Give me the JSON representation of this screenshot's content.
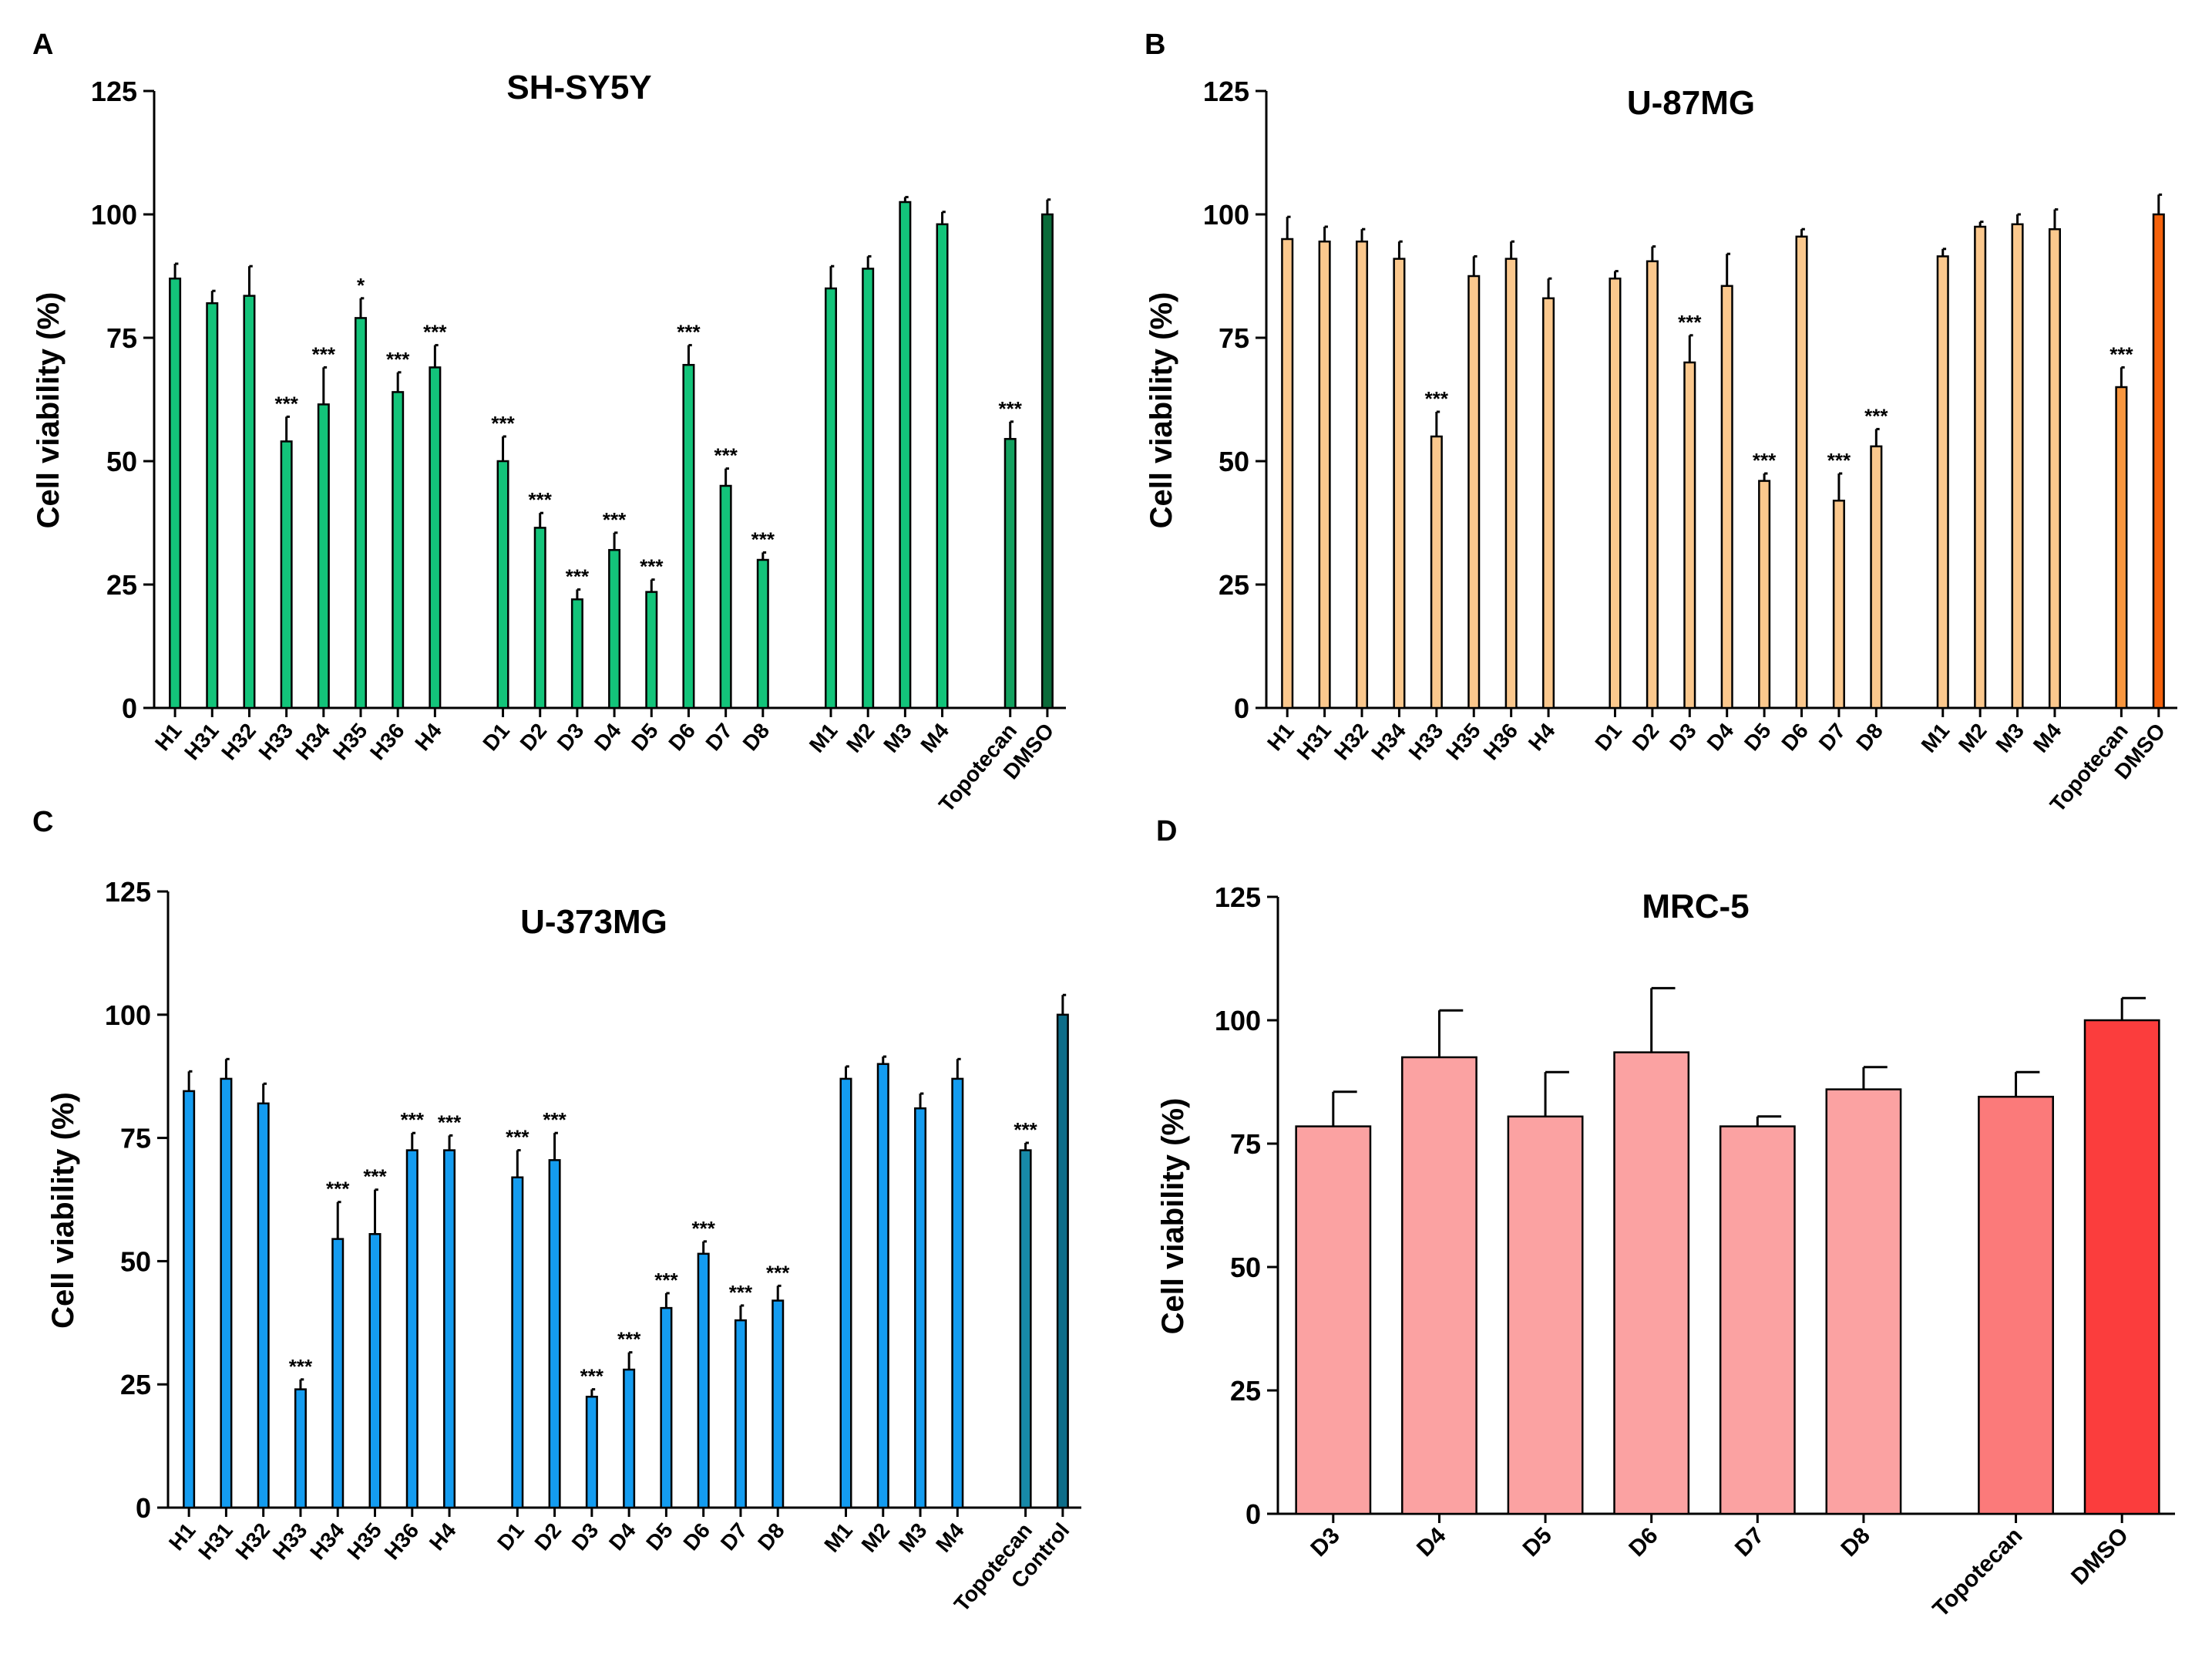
{
  "figure": {
    "panels": [
      {
        "letter": "A"
      },
      {
        "letter": "B"
      },
      {
        "letter": "C"
      },
      {
        "letter": "D"
      }
    ]
  },
  "chart_data": [
    {
      "type": "bar",
      "title": "SH-SY5Y",
      "ylabel": "Cell viability (%)",
      "ylim": [
        0,
        125
      ],
      "yticks": [
        0,
        25,
        50,
        75,
        100,
        125
      ],
      "groups": [
        [
          {
            "label": "H1",
            "value": 87,
            "error": 3,
            "sig": "",
            "color": "#13c47a"
          },
          {
            "label": "H31",
            "value": 82,
            "error": 2.5,
            "sig": "",
            "color": "#13c47a"
          },
          {
            "label": "H32",
            "value": 83.5,
            "error": 6,
            "sig": "",
            "color": "#13c47a"
          },
          {
            "label": "H33",
            "value": 54,
            "error": 5,
            "sig": "***",
            "color": "#13c47a"
          },
          {
            "label": "H34",
            "value": 61.5,
            "error": 7.5,
            "sig": "***",
            "color": "#13c47a"
          },
          {
            "label": "H35",
            "value": 79,
            "error": 4,
            "sig": "*",
            "color": "#13c47a"
          },
          {
            "label": "H36",
            "value": 64,
            "error": 4,
            "sig": "***",
            "color": "#13c47a"
          },
          {
            "label": "H4",
            "value": 69,
            "error": 4.5,
            "sig": "***",
            "color": "#13c47a"
          }
        ],
        [
          {
            "label": "D1",
            "value": 50,
            "error": 5,
            "sig": "***",
            "color": "#13c47a"
          },
          {
            "label": "D2",
            "value": 36.5,
            "error": 3,
            "sig": "***",
            "color": "#13c47a"
          },
          {
            "label": "D3",
            "value": 22,
            "error": 2,
            "sig": "***",
            "color": "#13c47a"
          },
          {
            "label": "D4",
            "value": 32,
            "error": 3.5,
            "sig": "***",
            "color": "#13c47a"
          },
          {
            "label": "D5",
            "value": 23.5,
            "error": 2.5,
            "sig": "***",
            "color": "#13c47a"
          },
          {
            "label": "D6",
            "value": 69.5,
            "error": 4,
            "sig": "***",
            "color": "#13c47a"
          },
          {
            "label": "D7",
            "value": 45,
            "error": 3.5,
            "sig": "***",
            "color": "#13c47a"
          },
          {
            "label": "D8",
            "value": 30,
            "error": 1.5,
            "sig": "***",
            "color": "#13c47a"
          }
        ],
        [
          {
            "label": "M1",
            "value": 85,
            "error": 4.5,
            "sig": "",
            "color": "#13c47a"
          },
          {
            "label": "M2",
            "value": 89,
            "error": 2.5,
            "sig": "",
            "color": "#13c47a"
          },
          {
            "label": "M3",
            "value": 102.5,
            "error": 1,
            "sig": "",
            "color": "#13c47a"
          },
          {
            "label": "M4",
            "value": 98,
            "error": 2.5,
            "sig": "",
            "color": "#13c47a"
          }
        ],
        [
          {
            "label": "Topotecan",
            "value": 54.5,
            "error": 3.5,
            "sig": "***",
            "color": "#13a15f"
          },
          {
            "label": "DMSO",
            "value": 100,
            "error": 3,
            "sig": "",
            "color": "#0b6b3a"
          }
        ]
      ]
    },
    {
      "type": "bar",
      "title": "U-87MG",
      "ylabel": "Cell viability (%)",
      "ylim": [
        0,
        125
      ],
      "yticks": [
        0,
        25,
        50,
        75,
        100,
        125
      ],
      "groups": [
        [
          {
            "label": "H1",
            "value": 95,
            "error": 4.5,
            "sig": "",
            "color": "#fbc88d"
          },
          {
            "label": "H31",
            "value": 94.5,
            "error": 3,
            "sig": "",
            "color": "#fbc88d"
          },
          {
            "label": "H32",
            "value": 94.5,
            "error": 2.5,
            "sig": "",
            "color": "#fbc88d"
          },
          {
            "label": "H34",
            "value": 91,
            "error": 3.5,
            "sig": "",
            "color": "#fbc88d"
          },
          {
            "label": "H33",
            "value": 55,
            "error": 5,
            "sig": "***",
            "color": "#fbc88d"
          },
          {
            "label": "H35",
            "value": 87.5,
            "error": 4,
            "sig": "",
            "color": "#fbc88d"
          },
          {
            "label": "H36",
            "value": 91,
            "error": 3.5,
            "sig": "",
            "color": "#fbc88d"
          },
          {
            "label": "H4",
            "value": 83,
            "error": 4,
            "sig": "",
            "color": "#fbc88d"
          }
        ],
        [
          {
            "label": "D1",
            "value": 87,
            "error": 1.5,
            "sig": "",
            "color": "#fbc88d"
          },
          {
            "label": "D2",
            "value": 90.5,
            "error": 3,
            "sig": "",
            "color": "#fbc88d"
          },
          {
            "label": "D3",
            "value": 70,
            "error": 5.5,
            "sig": "***",
            "color": "#fbc88d"
          },
          {
            "label": "D4",
            "value": 85.5,
            "error": 6.5,
            "sig": "",
            "color": "#fbc88d"
          },
          {
            "label": "D5",
            "value": 46,
            "error": 1.5,
            "sig": "***",
            "color": "#fbc88d"
          },
          {
            "label": "D6",
            "value": 95.5,
            "error": 1.5,
            "sig": "",
            "color": "#fbc88d"
          },
          {
            "label": "D7",
            "value": 42,
            "error": 5.5,
            "sig": "***",
            "color": "#fbc88d"
          },
          {
            "label": "D8",
            "value": 53,
            "error": 3.5,
            "sig": "***",
            "color": "#fbc88d"
          }
        ],
        [
          {
            "label": "M1",
            "value": 91.5,
            "error": 1.5,
            "sig": "",
            "color": "#fbc88d"
          },
          {
            "label": "M2",
            "value": 97.5,
            "error": 1,
            "sig": "",
            "color": "#fbc88d"
          },
          {
            "label": "M3",
            "value": 98,
            "error": 2,
            "sig": "",
            "color": "#fbc88d"
          },
          {
            "label": "M4",
            "value": 97,
            "error": 4,
            "sig": "",
            "color": "#fbc88d"
          }
        ],
        [
          {
            "label": "Topotecan",
            "value": 65,
            "error": 4,
            "sig": "***",
            "color": "#f9973f"
          },
          {
            "label": "DMSO",
            "value": 100,
            "error": 4,
            "sig": "",
            "color": "#f5620c"
          }
        ]
      ]
    },
    {
      "type": "bar",
      "title": "U-373MG",
      "ylabel": "Cell viability (%)",
      "ylim": [
        0,
        125
      ],
      "yticks": [
        0,
        25,
        50,
        75,
        100,
        125
      ],
      "groups": [
        [
          {
            "label": "H1",
            "value": 84.5,
            "error": 4,
            "sig": "",
            "color": "#149cf0"
          },
          {
            "label": "H31",
            "value": 87,
            "error": 4,
            "sig": "",
            "color": "#149cf0"
          },
          {
            "label": "H32",
            "value": 82,
            "error": 4,
            "sig": "",
            "color": "#149cf0"
          },
          {
            "label": "H33",
            "value": 24,
            "error": 2,
            "sig": "***",
            "color": "#149cf0"
          },
          {
            "label": "H34",
            "value": 54.5,
            "error": 7.5,
            "sig": "***",
            "color": "#149cf0"
          },
          {
            "label": "H35",
            "value": 55.5,
            "error": 9,
            "sig": "***",
            "color": "#149cf0"
          },
          {
            "label": "H36",
            "value": 72.5,
            "error": 3.5,
            "sig": "***",
            "color": "#149cf0"
          },
          {
            "label": "H4",
            "value": 72.5,
            "error": 3,
            "sig": "***",
            "color": "#149cf0"
          }
        ],
        [
          {
            "label": "D1",
            "value": 67,
            "error": 5.5,
            "sig": "***",
            "color": "#149cf0"
          },
          {
            "label": "D2",
            "value": 70.5,
            "error": 5.5,
            "sig": "***",
            "color": "#149cf0"
          },
          {
            "label": "D3",
            "value": 22.5,
            "error": 1.5,
            "sig": "***",
            "color": "#149cf0"
          },
          {
            "label": "D4",
            "value": 28,
            "error": 3.5,
            "sig": "***",
            "color": "#149cf0"
          },
          {
            "label": "D5",
            "value": 40.5,
            "error": 3,
            "sig": "***",
            "color": "#149cf0"
          },
          {
            "label": "D6",
            "value": 51.5,
            "error": 2.5,
            "sig": "***",
            "color": "#149cf0"
          },
          {
            "label": "D7",
            "value": 38,
            "error": 3,
            "sig": "***",
            "color": "#149cf0"
          },
          {
            "label": "D8",
            "value": 42,
            "error": 3,
            "sig": "***",
            "color": "#149cf0"
          }
        ],
        [
          {
            "label": "M1",
            "value": 87,
            "error": 2.5,
            "sig": "",
            "color": "#149cf0"
          },
          {
            "label": "M2",
            "value": 90,
            "error": 1.5,
            "sig": "",
            "color": "#149cf0"
          },
          {
            "label": "M3",
            "value": 81,
            "error": 3,
            "sig": "",
            "color": "#149cf0"
          },
          {
            "label": "M4",
            "value": 87,
            "error": 4,
            "sig": "",
            "color": "#149cf0"
          }
        ],
        [
          {
            "label": "Topotecan",
            "value": 72.5,
            "error": 1.5,
            "sig": "***",
            "color": "#1789a8"
          },
          {
            "label": "Control",
            "value": 100,
            "error": 4,
            "sig": "",
            "color": "#0d6d89"
          }
        ]
      ]
    },
    {
      "type": "bar",
      "title": "MRC-5",
      "ylabel": "Cell viability (%)",
      "ylim": [
        0,
        125
      ],
      "yticks": [
        0,
        25,
        50,
        75,
        100,
        125
      ],
      "groups": [
        [
          {
            "label": "D3",
            "value": 78.5,
            "error": 7,
            "sig": "",
            "color": "#fba2a2"
          },
          {
            "label": "D4",
            "value": 92.5,
            "error": 9.5,
            "sig": "",
            "color": "#fba2a2"
          },
          {
            "label": "D5",
            "value": 80.5,
            "error": 9,
            "sig": "",
            "color": "#fba2a2"
          },
          {
            "label": "D6",
            "value": 93.5,
            "error": 13,
            "sig": "",
            "color": "#fba2a2"
          },
          {
            "label": "D7",
            "value": 78.5,
            "error": 2,
            "sig": "",
            "color": "#fba2a2"
          },
          {
            "label": "D8",
            "value": 86,
            "error": 4.5,
            "sig": "",
            "color": "#fba2a2"
          }
        ],
        [
          {
            "label": "Topotecan",
            "value": 84.5,
            "error": 5,
            "sig": "",
            "color": "#fb7a7a"
          },
          {
            "label": "DMSO",
            "value": 100,
            "error": 4.5,
            "sig": "",
            "color": "#fb3d3d"
          }
        ]
      ]
    }
  ]
}
